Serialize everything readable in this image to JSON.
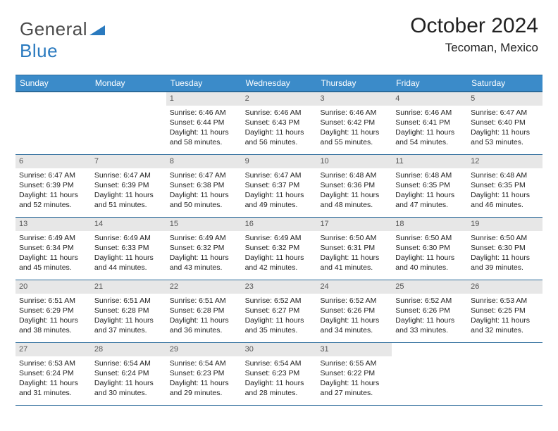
{
  "brand": {
    "general": "General",
    "blue": "Blue"
  },
  "colors": {
    "header_bg": "#3b8bc9",
    "header_border": "#2a6a9a",
    "daynum_bg": "#e7e7e7",
    "text": "#222222",
    "logo_gray": "#4a4a4a",
    "logo_blue": "#2a7abf"
  },
  "title": "October 2024",
  "location": "Tecoman, Mexico",
  "dow": [
    "Sunday",
    "Monday",
    "Tuesday",
    "Wednesday",
    "Thursday",
    "Friday",
    "Saturday"
  ],
  "weeks": [
    [
      {
        "n": "",
        "sr": "",
        "ss": "",
        "dl": ""
      },
      {
        "n": "",
        "sr": "",
        "ss": "",
        "dl": ""
      },
      {
        "n": "1",
        "sr": "Sunrise: 6:46 AM",
        "ss": "Sunset: 6:44 PM",
        "dl": "Daylight: 11 hours and 58 minutes."
      },
      {
        "n": "2",
        "sr": "Sunrise: 6:46 AM",
        "ss": "Sunset: 6:43 PM",
        "dl": "Daylight: 11 hours and 56 minutes."
      },
      {
        "n": "3",
        "sr": "Sunrise: 6:46 AM",
        "ss": "Sunset: 6:42 PM",
        "dl": "Daylight: 11 hours and 55 minutes."
      },
      {
        "n": "4",
        "sr": "Sunrise: 6:46 AM",
        "ss": "Sunset: 6:41 PM",
        "dl": "Daylight: 11 hours and 54 minutes."
      },
      {
        "n": "5",
        "sr": "Sunrise: 6:47 AM",
        "ss": "Sunset: 6:40 PM",
        "dl": "Daylight: 11 hours and 53 minutes."
      }
    ],
    [
      {
        "n": "6",
        "sr": "Sunrise: 6:47 AM",
        "ss": "Sunset: 6:39 PM",
        "dl": "Daylight: 11 hours and 52 minutes."
      },
      {
        "n": "7",
        "sr": "Sunrise: 6:47 AM",
        "ss": "Sunset: 6:39 PM",
        "dl": "Daylight: 11 hours and 51 minutes."
      },
      {
        "n": "8",
        "sr": "Sunrise: 6:47 AM",
        "ss": "Sunset: 6:38 PM",
        "dl": "Daylight: 11 hours and 50 minutes."
      },
      {
        "n": "9",
        "sr": "Sunrise: 6:47 AM",
        "ss": "Sunset: 6:37 PM",
        "dl": "Daylight: 11 hours and 49 minutes."
      },
      {
        "n": "10",
        "sr": "Sunrise: 6:48 AM",
        "ss": "Sunset: 6:36 PM",
        "dl": "Daylight: 11 hours and 48 minutes."
      },
      {
        "n": "11",
        "sr": "Sunrise: 6:48 AM",
        "ss": "Sunset: 6:35 PM",
        "dl": "Daylight: 11 hours and 47 minutes."
      },
      {
        "n": "12",
        "sr": "Sunrise: 6:48 AM",
        "ss": "Sunset: 6:35 PM",
        "dl": "Daylight: 11 hours and 46 minutes."
      }
    ],
    [
      {
        "n": "13",
        "sr": "Sunrise: 6:49 AM",
        "ss": "Sunset: 6:34 PM",
        "dl": "Daylight: 11 hours and 45 minutes."
      },
      {
        "n": "14",
        "sr": "Sunrise: 6:49 AM",
        "ss": "Sunset: 6:33 PM",
        "dl": "Daylight: 11 hours and 44 minutes."
      },
      {
        "n": "15",
        "sr": "Sunrise: 6:49 AM",
        "ss": "Sunset: 6:32 PM",
        "dl": "Daylight: 11 hours and 43 minutes."
      },
      {
        "n": "16",
        "sr": "Sunrise: 6:49 AM",
        "ss": "Sunset: 6:32 PM",
        "dl": "Daylight: 11 hours and 42 minutes."
      },
      {
        "n": "17",
        "sr": "Sunrise: 6:50 AM",
        "ss": "Sunset: 6:31 PM",
        "dl": "Daylight: 11 hours and 41 minutes."
      },
      {
        "n": "18",
        "sr": "Sunrise: 6:50 AM",
        "ss": "Sunset: 6:30 PM",
        "dl": "Daylight: 11 hours and 40 minutes."
      },
      {
        "n": "19",
        "sr": "Sunrise: 6:50 AM",
        "ss": "Sunset: 6:30 PM",
        "dl": "Daylight: 11 hours and 39 minutes."
      }
    ],
    [
      {
        "n": "20",
        "sr": "Sunrise: 6:51 AM",
        "ss": "Sunset: 6:29 PM",
        "dl": "Daylight: 11 hours and 38 minutes."
      },
      {
        "n": "21",
        "sr": "Sunrise: 6:51 AM",
        "ss": "Sunset: 6:28 PM",
        "dl": "Daylight: 11 hours and 37 minutes."
      },
      {
        "n": "22",
        "sr": "Sunrise: 6:51 AM",
        "ss": "Sunset: 6:28 PM",
        "dl": "Daylight: 11 hours and 36 minutes."
      },
      {
        "n": "23",
        "sr": "Sunrise: 6:52 AM",
        "ss": "Sunset: 6:27 PM",
        "dl": "Daylight: 11 hours and 35 minutes."
      },
      {
        "n": "24",
        "sr": "Sunrise: 6:52 AM",
        "ss": "Sunset: 6:26 PM",
        "dl": "Daylight: 11 hours and 34 minutes."
      },
      {
        "n": "25",
        "sr": "Sunrise: 6:52 AM",
        "ss": "Sunset: 6:26 PM",
        "dl": "Daylight: 11 hours and 33 minutes."
      },
      {
        "n": "26",
        "sr": "Sunrise: 6:53 AM",
        "ss": "Sunset: 6:25 PM",
        "dl": "Daylight: 11 hours and 32 minutes."
      }
    ],
    [
      {
        "n": "27",
        "sr": "Sunrise: 6:53 AM",
        "ss": "Sunset: 6:24 PM",
        "dl": "Daylight: 11 hours and 31 minutes."
      },
      {
        "n": "28",
        "sr": "Sunrise: 6:54 AM",
        "ss": "Sunset: 6:24 PM",
        "dl": "Daylight: 11 hours and 30 minutes."
      },
      {
        "n": "29",
        "sr": "Sunrise: 6:54 AM",
        "ss": "Sunset: 6:23 PM",
        "dl": "Daylight: 11 hours and 29 minutes."
      },
      {
        "n": "30",
        "sr": "Sunrise: 6:54 AM",
        "ss": "Sunset: 6:23 PM",
        "dl": "Daylight: 11 hours and 28 minutes."
      },
      {
        "n": "31",
        "sr": "Sunrise: 6:55 AM",
        "ss": "Sunset: 6:22 PM",
        "dl": "Daylight: 11 hours and 27 minutes."
      },
      {
        "n": "",
        "sr": "",
        "ss": "",
        "dl": ""
      },
      {
        "n": "",
        "sr": "",
        "ss": "",
        "dl": ""
      }
    ]
  ]
}
